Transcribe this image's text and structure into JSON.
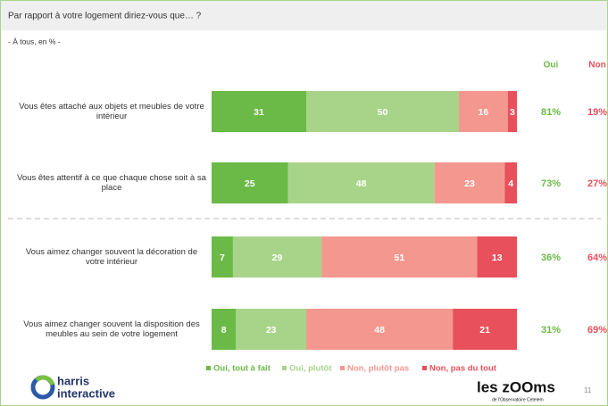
{
  "chart_data": {
    "type": "stacked_bar",
    "title": "Par rapport à votre logement diriez-vous que… ?",
    "subtitle": "- À tous, en % -",
    "categories": [
      "Vous êtes attaché aux objets et meubles de votre intérieur",
      "Vous êtes attentif à ce que chaque chose soit à sa place",
      "Vous aimez changer souvent la décoration de votre intérieur",
      "Vous aimez changer souvent la disposition des meubles au sein de votre logement"
    ],
    "series": [
      {
        "name": "Oui, tout à fait",
        "color": "#6bba47",
        "values": [
          31,
          25,
          7,
          8
        ]
      },
      {
        "name": "Oui, plutôt",
        "color": "#a8d48a",
        "values": [
          50,
          48,
          29,
          23
        ]
      },
      {
        "name": "Non, plutôt pas",
        "color": "#f4988f",
        "values": [
          16,
          23,
          51,
          48
        ]
      },
      {
        "name": "Non, pas du tout",
        "color": "#e8505b",
        "values": [
          3,
          4,
          13,
          21
        ]
      }
    ],
    "columns": [
      {
        "name": "Oui",
        "color": "#6bba47",
        "values": [
          81,
          73,
          36,
          31
        ],
        "value_labels": [
          "81%",
          "73%",
          "36%",
          "31%"
        ]
      },
      {
        "name": "Non",
        "color": "#e8505b",
        "values": [
          19,
          27,
          64,
          69
        ],
        "value_labels": [
          "19%",
          "27%",
          "64%",
          "69%"
        ]
      }
    ]
  },
  "footer": {
    "brand_left": [
      "harris",
      "interactive"
    ],
    "brand_right": "les zOOms",
    "brand_right_sub": "de l'Observatoire Cetelem",
    "page": "11"
  }
}
